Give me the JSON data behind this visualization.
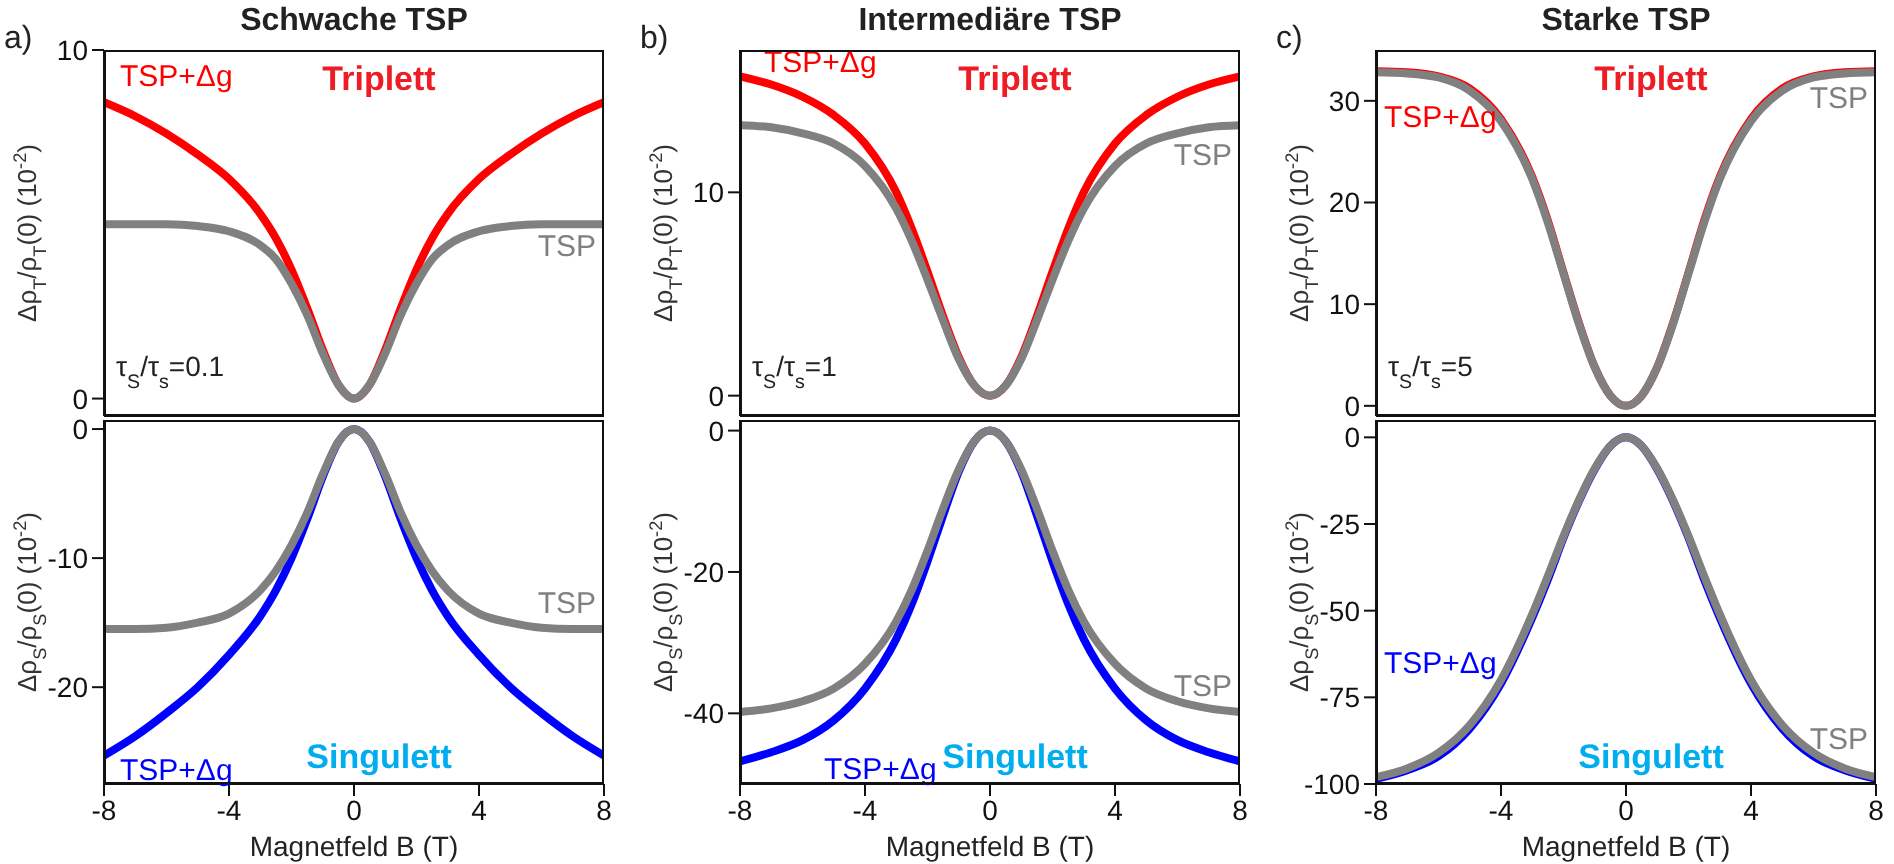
{
  "chart_data": [
    {
      "type": "line",
      "title": "Schwache TSP",
      "ylabel": "Δρ$_{T}$/ρ$_{T}$(0) (10$^{-2}$)",
      "annotations": [
        "a)",
        "Triplett",
        "τ$_{S}$/τ$_{s}$=0.1"
      ],
      "x": [
        -8,
        -7,
        -6,
        -5,
        -4,
        -3,
        -2.5,
        -2,
        -1.5,
        -1,
        -0.5,
        0,
        0.5,
        1,
        1.5,
        2,
        2.5,
        3,
        4,
        5,
        6,
        7,
        8
      ],
      "xlim": [
        -8,
        8
      ],
      "xticks": [
        -8,
        -4,
        0,
        4,
        8
      ],
      "ylim": [
        -0.5,
        10
      ],
      "yticks": [
        0,
        10
      ],
      "tick_labels": "y",
      "series": [
        {
          "name": "TSP+Δg",
          "color": "#ff0000",
          "values": [
            8.5,
            8.1,
            7.6,
            7.0,
            6.3,
            5.3,
            4.6,
            3.7,
            2.6,
            1.4,
            0.4,
            0,
            0.4,
            1.4,
            2.6,
            3.7,
            4.6,
            5.3,
            6.3,
            7.0,
            7.6,
            8.1,
            8.5
          ]
        },
        {
          "name": "TSP",
          "color": "#808080",
          "values": [
            5.0,
            5.0,
            5.0,
            4.95,
            4.8,
            4.4,
            4.0,
            3.3,
            2.4,
            1.3,
            0.4,
            0,
            0.4,
            1.3,
            2.4,
            3.3,
            4.0,
            4.4,
            4.8,
            4.95,
            5.0,
            5.0,
            5.0
          ]
        }
      ]
    },
    {
      "type": "line",
      "title": "Intermediäre TSP",
      "ylabel": "Δρ$_{T}$/ρ$_{T}$(0) (10$^{-2}$)",
      "annotations": [
        "b)",
        "Triplett",
        "τ$_{S}$/τ$_{s}$=1"
      ],
      "x": [
        -8,
        -7,
        -6,
        -5,
        -4,
        -3,
        -2.5,
        -2,
        -1.5,
        -1,
        -0.5,
        0,
        0.5,
        1,
        1.5,
        2,
        2.5,
        3,
        4,
        5,
        6,
        7,
        8
      ],
      "xlim": [
        -8,
        8
      ],
      "xticks": [
        -8,
        -4,
        0,
        4,
        8
      ],
      "ylim": [
        -1,
        17
      ],
      "yticks": [
        0,
        10
      ],
      "tick_labels": "y",
      "series": [
        {
          "name": "TSP+Δg",
          "color": "#ff0000",
          "values": [
            15.7,
            15.3,
            14.7,
            13.8,
            12.4,
            10,
            8.2,
            6.1,
            3.9,
            1.9,
            0.5,
            0,
            0.5,
            1.9,
            3.9,
            6.1,
            8.2,
            10,
            12.4,
            13.8,
            14.7,
            15.3,
            15.7
          ]
        },
        {
          "name": "TSP",
          "color": "#808080",
          "values": [
            13.3,
            13.2,
            12.9,
            12.4,
            11.3,
            9.2,
            7.6,
            5.7,
            3.7,
            1.8,
            0.5,
            0,
            0.5,
            1.8,
            3.7,
            5.7,
            7.6,
            9.2,
            11.3,
            12.4,
            12.9,
            13.2,
            13.3
          ]
        }
      ]
    },
    {
      "type": "line",
      "title": "Starke TSP",
      "ylabel": "Δρ$_{T}$/ρ$_{T}$(0) (10$^{-2}$)",
      "annotations": [
        "c)",
        "Triplett",
        "τ$_{S}$/τ$_{s}$=5"
      ],
      "x": [
        -8,
        -7,
        -6,
        -5,
        -4,
        -3,
        -2.5,
        -2,
        -1.5,
        -1,
        -0.5,
        0,
        0.5,
        1,
        1.5,
        2,
        2.5,
        3,
        4,
        5,
        6,
        7,
        8
      ],
      "xlim": [
        -8,
        8
      ],
      "xticks": [
        -8,
        -4,
        0,
        4,
        8
      ],
      "ylim": [
        -1,
        35
      ],
      "yticks": [
        0,
        10,
        20,
        30
      ],
      "tick_labels": "y",
      "series": [
        {
          "name": "TSP+Δg",
          "color": "#ff0000",
          "values": [
            32.9,
            32.8,
            32.4,
            31.2,
            28.2,
            22.5,
            18.2,
            13.1,
            8.1,
            3.8,
            1,
            0,
            1,
            3.8,
            8.1,
            13.1,
            18.2,
            22.5,
            28.2,
            31.2,
            32.4,
            32.8,
            32.9
          ]
        },
        {
          "name": "TSP",
          "color": "#808080",
          "values": [
            32.8,
            32.7,
            32.3,
            31,
            28,
            22.3,
            18,
            13,
            8,
            3.8,
            1,
            0,
            1,
            3.8,
            8,
            13,
            18,
            22.3,
            28,
            31,
            32.3,
            32.7,
            32.8
          ]
        }
      ]
    },
    {
      "type": "line",
      "xlabel": "Magnetfeld B (T)",
      "ylabel": "Δρ$_{S}$/ρ$_{S}$(0) (10$^{-2}$)",
      "annotations": [
        "Singulett"
      ],
      "x": [
        -8,
        -7,
        -6,
        -5,
        -4,
        -3,
        -2.5,
        -2,
        -1.5,
        -1,
        -0.5,
        0,
        0.5,
        1,
        1.5,
        2,
        2.5,
        3,
        4,
        5,
        6,
        7,
        8
      ],
      "xlim": [
        -8,
        8
      ],
      "xticks": [
        -8,
        -4,
        0,
        4,
        8
      ],
      "ylim": [
        -27.5,
        0.7
      ],
      "yticks": [
        0,
        -10,
        -20
      ],
      "series": [
        {
          "name": "TSP+Δg",
          "color": "#0000ff",
          "values": [
            -25.3,
            -23.8,
            -22,
            -20,
            -17.5,
            -14.5,
            -12.5,
            -10,
            -7,
            -3.7,
            -1,
            0,
            -1,
            -3.7,
            -7,
            -10,
            -12.5,
            -14.5,
            -17.5,
            -20,
            -22,
            -23.8,
            -25.3
          ]
        },
        {
          "name": "TSP",
          "color": "#808080",
          "values": [
            -15.5,
            -15.5,
            -15.4,
            -15,
            -14.3,
            -12.5,
            -11,
            -9,
            -6.5,
            -3.5,
            -1,
            0,
            -1,
            -3.5,
            -6.5,
            -9,
            -11,
            -12.5,
            -14.3,
            -15,
            -15.4,
            -15.5,
            -15.5
          ]
        }
      ]
    },
    {
      "type": "line",
      "xlabel": "Magnetfeld B (T)",
      "ylabel": "Δρ$_{S}$/ρ$_{S}$(0) (10$^{-2}$)",
      "annotations": [
        "Singulett"
      ],
      "x": [
        -8,
        -7,
        -6,
        -5,
        -4,
        -3,
        -2.5,
        -2,
        -1.5,
        -1,
        -0.5,
        0,
        0.5,
        1,
        1.5,
        2,
        2.5,
        3,
        4,
        5,
        6,
        7,
        8
      ],
      "xlim": [
        -8,
        8
      ],
      "xticks": [
        -8,
        -4,
        0,
        4,
        8
      ],
      "ylim": [
        -50,
        1.5
      ],
      "yticks": [
        0,
        -20,
        -40
      ],
      "series": [
        {
          "name": "TSP+Δg",
          "color": "#0000ff",
          "values": [
            -46.8,
            -45.5,
            -43.8,
            -41,
            -36.5,
            -29.5,
            -24.5,
            -18.5,
            -12,
            -5.8,
            -1.5,
            0,
            -1.5,
            -5.8,
            -12,
            -18.5,
            -24.5,
            -29.5,
            -36.5,
            -41,
            -43.8,
            -45.5,
            -46.8
          ]
        },
        {
          "name": "TSP",
          "color": "#808080",
          "values": [
            -39.8,
            -39.3,
            -38.3,
            -36.5,
            -33,
            -27,
            -22.5,
            -17,
            -11,
            -5.5,
            -1.5,
            0,
            -1.5,
            -5.5,
            -11,
            -17,
            -22.5,
            -27,
            -33,
            -36.5,
            -38.3,
            -39.3,
            -39.8
          ]
        }
      ]
    },
    {
      "type": "line",
      "xlabel": "Magnetfeld B (T)",
      "ylabel": "Δρ$_{S}$/ρ$_{S}$(0) (10$^{-2}$)",
      "annotations": [
        "Singulett"
      ],
      "x": [
        -8,
        -7,
        -6,
        -5,
        -4,
        -3,
        -2.5,
        -2,
        -1.5,
        -1,
        -0.5,
        0,
        0.5,
        1,
        1.5,
        2,
        2.5,
        3,
        4,
        5,
        6,
        7,
        8
      ],
      "xlim": [
        -8,
        8
      ],
      "xticks": [
        -8,
        -4,
        0,
        4,
        8
      ],
      "ylim": [
        -100,
        5
      ],
      "yticks": [
        0,
        -25,
        -50,
        -75,
        -100
      ],
      "series": [
        {
          "name": "TSP+Δg",
          "color": "#0000ff",
          "values": [
            -98.5,
            -96,
            -92,
            -84,
            -71,
            -52,
            -41,
            -29,
            -18.3,
            -9.2,
            -2.5,
            0,
            -2.5,
            -9.2,
            -18.3,
            -29,
            -41,
            -52,
            -71,
            -84,
            -92,
            -96,
            -98.5
          ]
        },
        {
          "name": "TSP",
          "color": "#808080",
          "values": [
            -98,
            -95.5,
            -91,
            -83,
            -70,
            -51,
            -40,
            -28.5,
            -18,
            -9,
            -2.5,
            0,
            -2.5,
            -9,
            -18,
            -28.5,
            -40,
            -51,
            -70,
            -83,
            -91,
            -95.5,
            -98
          ]
        }
      ]
    }
  ]
}
